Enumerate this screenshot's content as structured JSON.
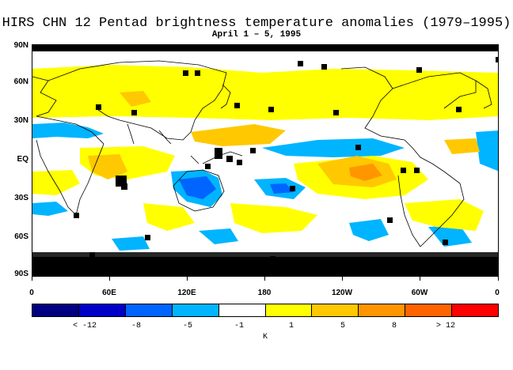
{
  "title": "HIRS CHN 12 Pentad brightness temperature anomalies (1979–1995)",
  "subtitle": "April 1 – 5, 1995",
  "axes": {
    "y_labels": [
      "90N",
      "60N",
      "30N",
      "EQ",
      "30S",
      "60S",
      "90S"
    ],
    "x_labels": [
      "0",
      "60E",
      "120E",
      "180",
      "120W",
      "60W",
      "0"
    ]
  },
  "colorbar": {
    "colors": [
      "#000080",
      "#0000c8",
      "#0064ff",
      "#00b4ff",
      "#ffffff",
      "#ffff00",
      "#ffc800",
      "#ff9600",
      "#ff6400",
      "#ff0000"
    ],
    "labels": [
      "< -12",
      "-8",
      "-5",
      "-1",
      "1",
      "5",
      "8",
      "> 12"
    ],
    "units": "K"
  }
}
